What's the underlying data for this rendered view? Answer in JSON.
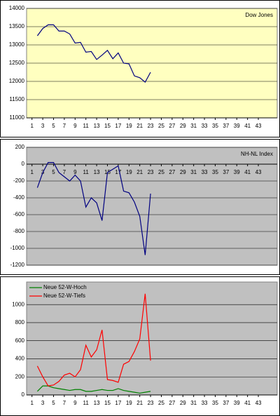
{
  "chart_data": [
    {
      "type": "line",
      "title": "Dow Jones",
      "background": "#ffffc0",
      "grid": true,
      "x": [
        2,
        3,
        4,
        5,
        6,
        7,
        8,
        9,
        10,
        11,
        12,
        13,
        14,
        15,
        16,
        17,
        18,
        19,
        20,
        21,
        22,
        23
      ],
      "series": [
        {
          "name": "Dow Jones",
          "color": "#000080",
          "values": [
            13250,
            13450,
            13550,
            13550,
            13380,
            13380,
            13300,
            13050,
            13070,
            12800,
            12820,
            12600,
            12720,
            12850,
            12620,
            12780,
            12500,
            12480,
            12150,
            12100,
            11980,
            12250
          ]
        }
      ],
      "xlim": [
        0,
        46.5
      ],
      "xticks": [
        1,
        3,
        5,
        7,
        9,
        11,
        13,
        15,
        17,
        19,
        21,
        23,
        25,
        27,
        29,
        31,
        33,
        35,
        37,
        39,
        41,
        43
      ],
      "ylim": [
        11000,
        14000
      ],
      "yticks": [
        11000,
        11500,
        12000,
        12500,
        13000,
        13500,
        14000
      ]
    },
    {
      "type": "line",
      "title": "NH-NL Index",
      "background": "#c0c0c0",
      "grid": true,
      "x": [
        2,
        3,
        4,
        5,
        6,
        7,
        8,
        9,
        10,
        11,
        12,
        13,
        14,
        15,
        16,
        17,
        18,
        19,
        20,
        21,
        22,
        23
      ],
      "series": [
        {
          "name": "NH-NL Index",
          "color": "#000080",
          "values": [
            -280,
            -100,
            20,
            20,
            -100,
            -150,
            -200,
            -130,
            -200,
            -510,
            -400,
            -460,
            -670,
            -100,
            -60,
            -20,
            -320,
            -340,
            -450,
            -620,
            -1080,
            -350
          ]
        }
      ],
      "xlim": [
        0,
        46.5
      ],
      "xticks": [
        1,
        3,
        5,
        7,
        9,
        11,
        13,
        15,
        17,
        19,
        21,
        23,
        25,
        27,
        29,
        31,
        33,
        35,
        37,
        39,
        41,
        43
      ],
      "ylim": [
        -1200,
        200
      ],
      "yticks": [
        -1200,
        -1000,
        -800,
        -600,
        -400,
        -200,
        0,
        200
      ]
    },
    {
      "type": "line",
      "background": "#c0c0c0",
      "grid": true,
      "legend": "upper left",
      "x": [
        2,
        3,
        4,
        5,
        6,
        7,
        8,
        9,
        10,
        11,
        12,
        13,
        14,
        15,
        16,
        17,
        18,
        19,
        20,
        21,
        22,
        23
      ],
      "series": [
        {
          "name": "Neue 52-W-Hoch",
          "color": "#008000",
          "values": [
            40,
            100,
            100,
            80,
            70,
            60,
            50,
            60,
            60,
            40,
            40,
            50,
            60,
            50,
            50,
            70,
            50,
            40,
            30,
            20,
            30,
            40
          ]
        },
        {
          "name": "Neue 52-W-Tiefs",
          "color": "#ff0000",
          "values": [
            320,
            200,
            100,
            110,
            150,
            220,
            240,
            200,
            280,
            550,
            420,
            500,
            720,
            170,
            160,
            140,
            340,
            370,
            480,
            620,
            1120,
            380
          ]
        }
      ],
      "xlim": [
        0,
        46.5
      ],
      "xticks": [
        1,
        3,
        5,
        7,
        9,
        11,
        13,
        15,
        17,
        19,
        21,
        23,
        25,
        27,
        29,
        31,
        33,
        35,
        37,
        39,
        41,
        43
      ],
      "ylim": [
        0,
        1250
      ],
      "yticks": [
        0,
        200,
        400,
        600,
        800,
        1000
      ]
    }
  ]
}
